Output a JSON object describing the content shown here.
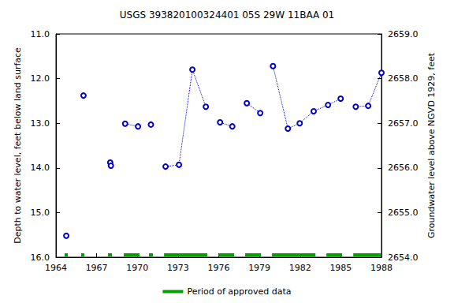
{
  "chart_data": {
    "type": "line",
    "title": "USGS 393820100324401 05S 29W 11BAA 01",
    "y_label": "Depth to water level, feet below land surface",
    "y2_label": "Groundwater level above NGVD 1929, feet",
    "color": "#0000cc",
    "marker": "circle",
    "line_style": "dotted",
    "grid": false,
    "xlim": [
      1964,
      1988
    ],
    "xticks": [
      1964,
      1967,
      1970,
      1973,
      1976,
      1979,
      1982,
      1985,
      1988
    ],
    "ylim": [
      16,
      11
    ],
    "yticks": [
      {
        "value": 11,
        "label": "11.0"
      },
      {
        "value": 12,
        "label": "12.0"
      },
      {
        "value": 13,
        "label": "13.0"
      },
      {
        "value": 14,
        "label": "14.0"
      },
      {
        "value": 15,
        "label": "15.0"
      },
      {
        "value": 16,
        "label": "16.0"
      }
    ],
    "y2lim": [
      2654,
      2659
    ],
    "y2ticks": [
      {
        "value": 2654,
        "label": "2654.0"
      },
      {
        "value": 2655,
        "label": "2655.0"
      },
      {
        "value": 2656,
        "label": "2656.0"
      },
      {
        "value": 2657,
        "label": "2657.0"
      },
      {
        "value": 2658,
        "label": "2658.0"
      },
      {
        "value": 2659,
        "label": "2659.0"
      }
    ],
    "series": [
      {
        "x": [
          1964.76
        ],
        "values": [
          15.52
        ]
      },
      {
        "x": [
          1966.03
        ],
        "values": [
          12.38
        ]
      },
      {
        "x": [
          1968.0,
          1968.05
        ],
        "values": [
          13.88,
          13.95
        ]
      },
      {
        "x": [
          1969.1,
          1970.05
        ],
        "values": [
          13.01,
          13.07
        ]
      },
      {
        "x": [
          1971.0
        ],
        "values": [
          13.03
        ]
      },
      {
        "x": [
          1972.08,
          1973.07,
          1974.06,
          1975.05
        ],
        "values": [
          13.97,
          13.93,
          11.8,
          12.63
        ]
      },
      {
        "x": [
          1976.1,
          1977.0
        ],
        "values": [
          12.98,
          13.07
        ]
      },
      {
        "x": [
          1978.07,
          1979.06
        ],
        "values": [
          12.55,
          12.77
        ]
      },
      {
        "x": [
          1980.0,
          1981.1,
          1981.97,
          1983.0,
          1984.06,
          1984.99
        ],
        "values": [
          11.72,
          13.12,
          13.0,
          12.73,
          12.59,
          12.45
        ]
      },
      {
        "x": [
          1986.1,
          1987.02,
          1988.0
        ],
        "values": [
          12.63,
          12.61,
          11.87
        ]
      }
    ],
    "approved_periods": {
      "name": "Period of approved data",
      "color": "#00a000",
      "ranges": [
        [
          1964.64,
          1964.87
        ],
        [
          1965.86,
          1966.09
        ],
        [
          1967.84,
          1968.13
        ],
        [
          1969.0,
          1970.16
        ],
        [
          1970.86,
          1971.15
        ],
        [
          1971.97,
          1975.16
        ],
        [
          1975.98,
          1977.14
        ],
        [
          1977.95,
          1979.12
        ],
        [
          1979.93,
          1983.13
        ],
        [
          1983.94,
          1985.1
        ],
        [
          1985.92,
          1988.0
        ]
      ]
    }
  }
}
